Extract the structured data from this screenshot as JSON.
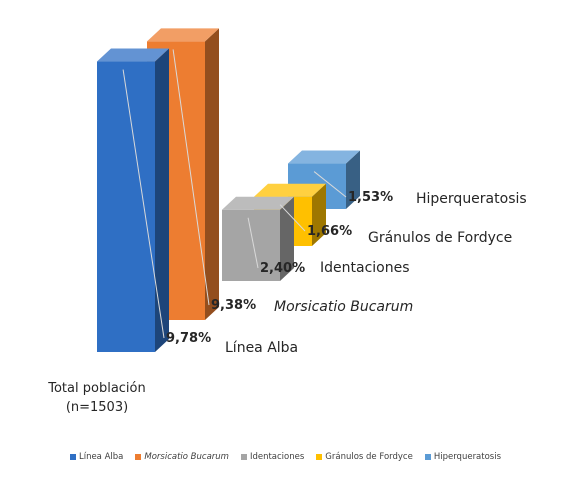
{
  "chart_data": {
    "type": "bar",
    "style": "3d-column-stepped",
    "category_label": [
      "Total población",
      "(n=1503)"
    ],
    "series": [
      {
        "name": "Línea Alba",
        "value": 9.78,
        "value_label": "9,78%",
        "color": "#2f6fc4",
        "italic": false
      },
      {
        "name": "Morsicatio Bucarum",
        "value": 9.38,
        "value_label": "9,38%",
        "color": "#ed7d31",
        "italic": true
      },
      {
        "name": "Identaciones",
        "value": 2.4,
        "value_label": "2,40%",
        "color": "#a5a5a5",
        "italic": false
      },
      {
        "name": "Gránulos de Fordyce",
        "value": 1.66,
        "value_label": "1,66%",
        "color": "#ffc000",
        "italic": false
      },
      {
        "name": "Hiperqueratosis",
        "value": 1.53,
        "value_label": "1,53%",
        "color": "#5b9bd5",
        "italic": false
      }
    ],
    "legend_position": "bottom",
    "grid": false
  }
}
